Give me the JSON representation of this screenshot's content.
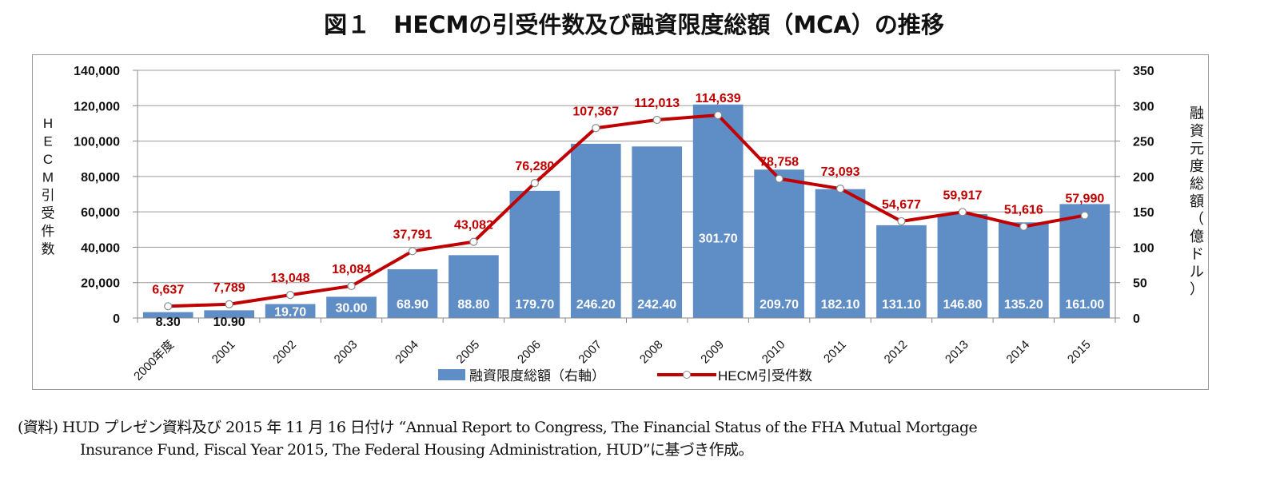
{
  "chart_data": {
    "type": "bar+line",
    "title": "図１　HECMの引受件数及び融資限度総額（MCA）の推移",
    "categories": [
      "2000年度",
      "2001",
      "2002",
      "2003",
      "2004",
      "2005",
      "2006",
      "2007",
      "2008",
      "2009",
      "2010",
      "2011",
      "2012",
      "2013",
      "2014",
      "2015"
    ],
    "series": [
      {
        "name": "融資限度総額（右軸）",
        "type": "bar",
        "axis": "right",
        "color": "#5f8dc6",
        "values": [
          8.3,
          10.9,
          19.7,
          30.0,
          68.9,
          88.8,
          179.7,
          246.2,
          242.4,
          301.7,
          209.7,
          182.1,
          131.1,
          146.8,
          135.2,
          161.0
        ],
        "labels": [
          "8.30",
          "10.90",
          "19.70",
          "30.00",
          "68.90",
          "88.80",
          "179.70",
          "246.20",
          "242.40",
          "301.70",
          "209.70",
          "182.10",
          "131.10",
          "146.80",
          "135.20",
          "161.00"
        ]
      },
      {
        "name": "HECM引受件数",
        "type": "line",
        "axis": "left",
        "color": "#c00000",
        "values": [
          6637,
          7789,
          13048,
          18084,
          37791,
          43082,
          76280,
          107367,
          112013,
          114639,
          78758,
          73093,
          54677,
          59917,
          51616,
          57990
        ],
        "labels": [
          "6,637",
          "7,789",
          "13,048",
          "18,084",
          "37,791",
          "43,082",
          "76,280",
          "107,367",
          "112,013",
          "114,639",
          "78,758",
          "73,093",
          "54,677",
          "59,917",
          "51,616",
          "57,990"
        ]
      }
    ],
    "ylabel_left": "HECM引受件数",
    "ylabel_right": "融資元度総額（億ドル）",
    "ylim_left": [
      0,
      140000
    ],
    "ylim_right": [
      0,
      350
    ],
    "yticks_left": [
      "0",
      "20,000",
      "40,000",
      "60,000",
      "80,000",
      "100,000",
      "120,000",
      "140,000"
    ],
    "yticks_right": [
      "0",
      "50",
      "100",
      "150",
      "200",
      "250",
      "300",
      "350"
    ],
    "grid": true,
    "legend": "bottom"
  },
  "source_note": {
    "line1": "(資料) HUD プレゼン資料及び 2015 年 11 月 16 日付け “Annual Report to Congress, The Financial Status of the FHA Mutual Mortgage",
    "line2": "Insurance Fund, Fiscal Year 2015, The Federal Housing Administration, HUD”に基づき作成。"
  }
}
